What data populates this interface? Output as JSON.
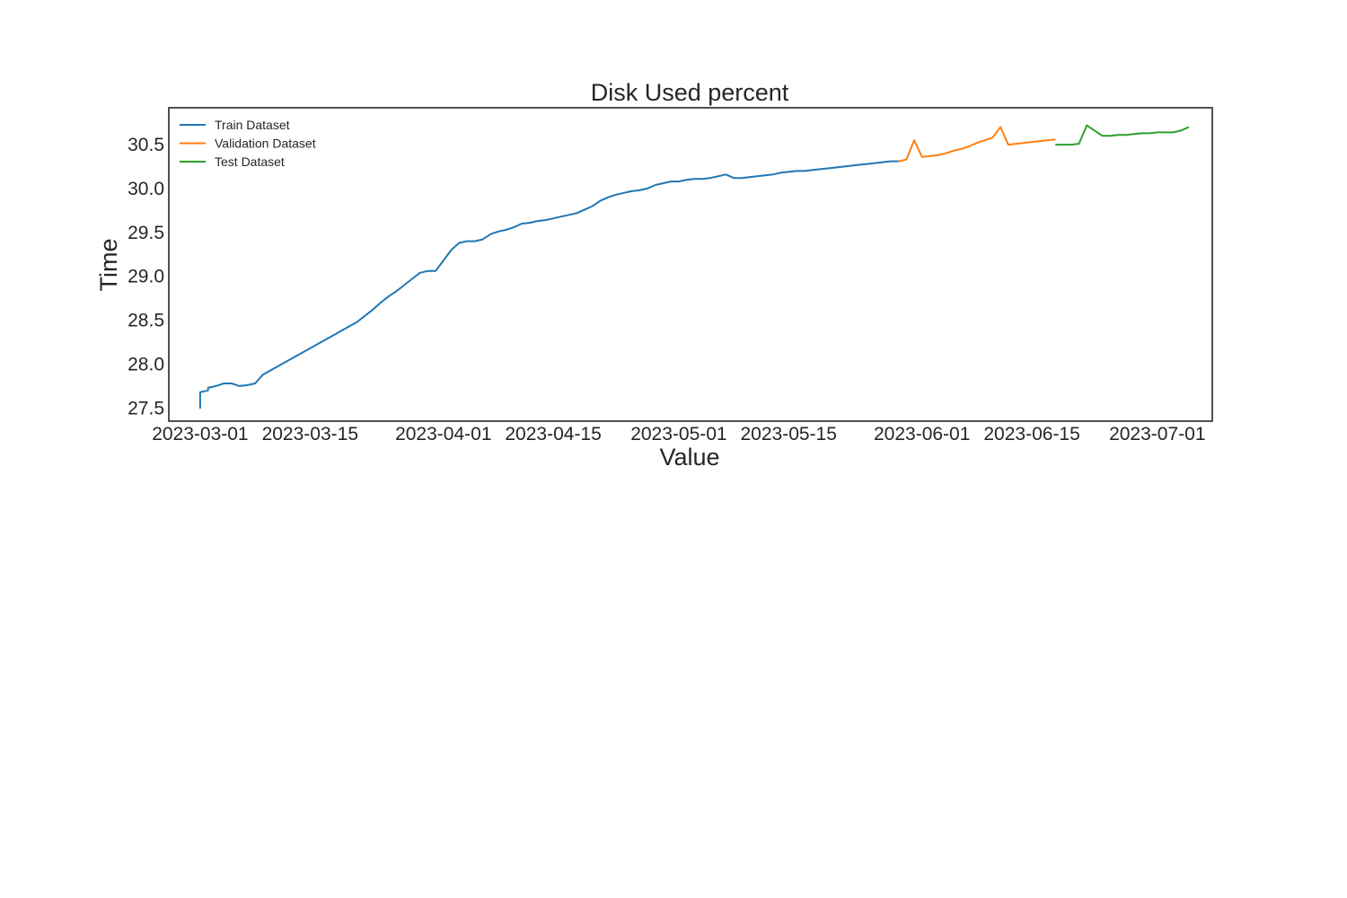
{
  "chart_data": {
    "type": "line",
    "title": "Disk Used percent",
    "xlabel": "Value",
    "ylabel": "Time",
    "x_type": "date",
    "xlim": [
      "2023-02-25",
      "2023-07-08"
    ],
    "ylim": [
      27.35,
      30.92
    ],
    "x_ticks": [
      "2023-03-01",
      "2023-03-15",
      "2023-04-01",
      "2023-04-15",
      "2023-05-01",
      "2023-05-15",
      "2023-06-01",
      "2023-06-15",
      "2023-07-01"
    ],
    "y_ticks": [
      27.5,
      28.0,
      28.5,
      29.0,
      29.5,
      30.0,
      30.5
    ],
    "y_tick_labels": [
      "27.5",
      "28.0",
      "28.5",
      "29.0",
      "29.5",
      "30.0",
      "30.5"
    ],
    "grid": false,
    "legend_position": "top-left",
    "series": [
      {
        "name": "Train Dataset",
        "color": "#1f77b4",
        "x": [
          "2023-03-01",
          "2023-03-01",
          "2023-03-01",
          "2023-03-02",
          "2023-03-02",
          "2023-03-03",
          "2023-03-04",
          "2023-03-05",
          "2023-03-06",
          "2023-03-07",
          "2023-03-08",
          "2023-03-09",
          "2023-03-10",
          "2023-03-11",
          "2023-03-12",
          "2023-03-13",
          "2023-03-14",
          "2023-03-15",
          "2023-03-16",
          "2023-03-17",
          "2023-03-18",
          "2023-03-19",
          "2023-03-20",
          "2023-03-21",
          "2023-03-22",
          "2023-03-23",
          "2023-03-24",
          "2023-03-25",
          "2023-03-26",
          "2023-03-27",
          "2023-03-28",
          "2023-03-29",
          "2023-03-30",
          "2023-03-31",
          "2023-04-01",
          "2023-04-02",
          "2023-04-03",
          "2023-04-04",
          "2023-04-05",
          "2023-04-06",
          "2023-04-07",
          "2023-04-08",
          "2023-04-09",
          "2023-04-10",
          "2023-04-11",
          "2023-04-12",
          "2023-04-13",
          "2023-04-14",
          "2023-04-15",
          "2023-04-16",
          "2023-04-17",
          "2023-04-18",
          "2023-04-19",
          "2023-04-20",
          "2023-04-21",
          "2023-04-22",
          "2023-04-23",
          "2023-04-24",
          "2023-04-25",
          "2023-04-26",
          "2023-04-27",
          "2023-04-28",
          "2023-04-29",
          "2023-04-30",
          "2023-05-01",
          "2023-05-02",
          "2023-05-03",
          "2023-05-04",
          "2023-05-05",
          "2023-05-06",
          "2023-05-07",
          "2023-05-08",
          "2023-05-09",
          "2023-05-10",
          "2023-05-11",
          "2023-05-12",
          "2023-05-13",
          "2023-05-14",
          "2023-05-15",
          "2023-05-16",
          "2023-05-17",
          "2023-05-18",
          "2023-05-19",
          "2023-05-20",
          "2023-05-21",
          "2023-05-22",
          "2023-05-23",
          "2023-05-24",
          "2023-05-25",
          "2023-05-26",
          "2023-05-27",
          "2023-05-28",
          "2023-05-29"
        ],
        "y": [
          27.55,
          27.5,
          27.68,
          27.7,
          27.73,
          27.75,
          27.78,
          27.78,
          27.75,
          27.76,
          27.78,
          27.88,
          27.93,
          27.98,
          28.03,
          28.08,
          28.13,
          28.18,
          28.23,
          28.28,
          28.33,
          28.38,
          28.43,
          28.48,
          28.55,
          28.62,
          28.7,
          28.77,
          28.83,
          28.9,
          28.97,
          29.04,
          29.06,
          29.06,
          29.18,
          29.3,
          29.38,
          29.4,
          29.4,
          29.42,
          29.48,
          29.51,
          29.53,
          29.56,
          29.6,
          29.61,
          29.63,
          29.64,
          29.66,
          29.68,
          29.7,
          29.72,
          29.76,
          29.8,
          29.86,
          29.9,
          29.93,
          29.95,
          29.97,
          29.98,
          30.0,
          30.04,
          30.06,
          30.08,
          30.08,
          30.1,
          30.11,
          30.11,
          30.12,
          30.14,
          30.16,
          30.12,
          30.12,
          30.13,
          30.14,
          30.15,
          30.16,
          30.18,
          30.19,
          30.2,
          30.2,
          30.21,
          30.22,
          30.23,
          30.24,
          30.25,
          30.26,
          30.27,
          30.28,
          30.29,
          30.3,
          30.31,
          30.31
        ]
      },
      {
        "name": "Validation Dataset",
        "color": "#ff7f0e",
        "x": [
          "2023-05-29",
          "2023-05-30",
          "2023-05-31",
          "2023-06-01",
          "2023-06-02",
          "2023-06-03",
          "2023-06-04",
          "2023-06-05",
          "2023-06-06",
          "2023-06-07",
          "2023-06-08",
          "2023-06-09",
          "2023-06-10",
          "2023-06-11",
          "2023-06-12",
          "2023-06-13",
          "2023-06-14",
          "2023-06-15",
          "2023-06-16",
          "2023-06-17",
          "2023-06-18"
        ],
        "y": [
          30.31,
          30.33,
          30.55,
          30.36,
          30.37,
          30.38,
          30.4,
          30.43,
          30.45,
          30.48,
          30.52,
          30.55,
          30.58,
          30.7,
          30.5,
          30.51,
          30.52,
          30.53,
          30.54,
          30.55,
          30.56
        ]
      },
      {
        "name": "Test Dataset",
        "color": "#2ca02c",
        "x": [
          "2023-06-18",
          "2023-06-19",
          "2023-06-20",
          "2023-06-21",
          "2023-06-22",
          "2023-06-23",
          "2023-06-24",
          "2023-06-25",
          "2023-06-26",
          "2023-06-27",
          "2023-06-28",
          "2023-06-29",
          "2023-06-30",
          "2023-07-01",
          "2023-07-02",
          "2023-07-03",
          "2023-07-04",
          "2023-07-05"
        ],
        "y": [
          30.5,
          30.5,
          30.5,
          30.51,
          30.72,
          30.66,
          30.6,
          30.6,
          30.61,
          30.61,
          30.62,
          30.63,
          30.63,
          30.64,
          30.64,
          30.64,
          30.66,
          30.7
        ]
      }
    ]
  }
}
